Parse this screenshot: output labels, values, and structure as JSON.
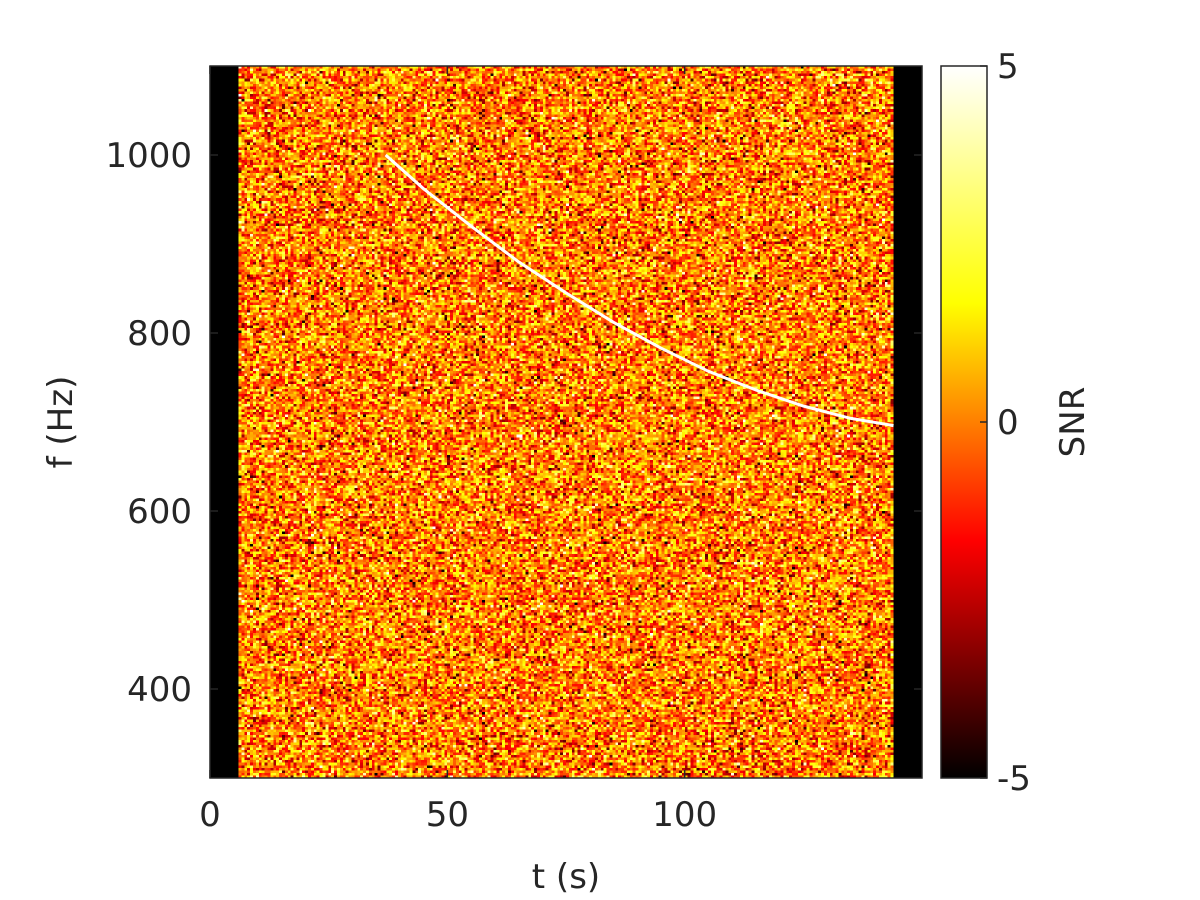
{
  "chart_data": {
    "type": "heatmap",
    "title": "",
    "xlabel": "t (s)",
    "ylabel": "f (Hz)",
    "xlim": [
      0,
      150
    ],
    "ylim": [
      300,
      1100
    ],
    "xticks": [
      0,
      50,
      100
    ],
    "yticks": [
      400,
      600,
      800,
      1000
    ],
    "data_time_range": [
      6,
      144
    ],
    "grid": false,
    "noise": {
      "mean": 0,
      "std": 1.6,
      "t_bins": 226,
      "f_bins": 280
    },
    "colorbar": {
      "label": "SNR",
      "min": -5,
      "max": 5,
      "ticks": [
        -5,
        0,
        5
      ],
      "colormap": "hot",
      "colors": [
        "#000000",
        "#ff0000",
        "#ffff00",
        "#ffffff"
      ]
    },
    "signal_track": {
      "value": 5,
      "t": [
        37,
        45,
        55,
        65,
        75,
        85,
        95,
        105,
        115,
        125,
        135,
        144
      ],
      "f": [
        1000,
        962,
        920,
        880,
        845,
        812,
        783,
        757,
        736,
        718,
        704,
        696
      ]
    }
  }
}
